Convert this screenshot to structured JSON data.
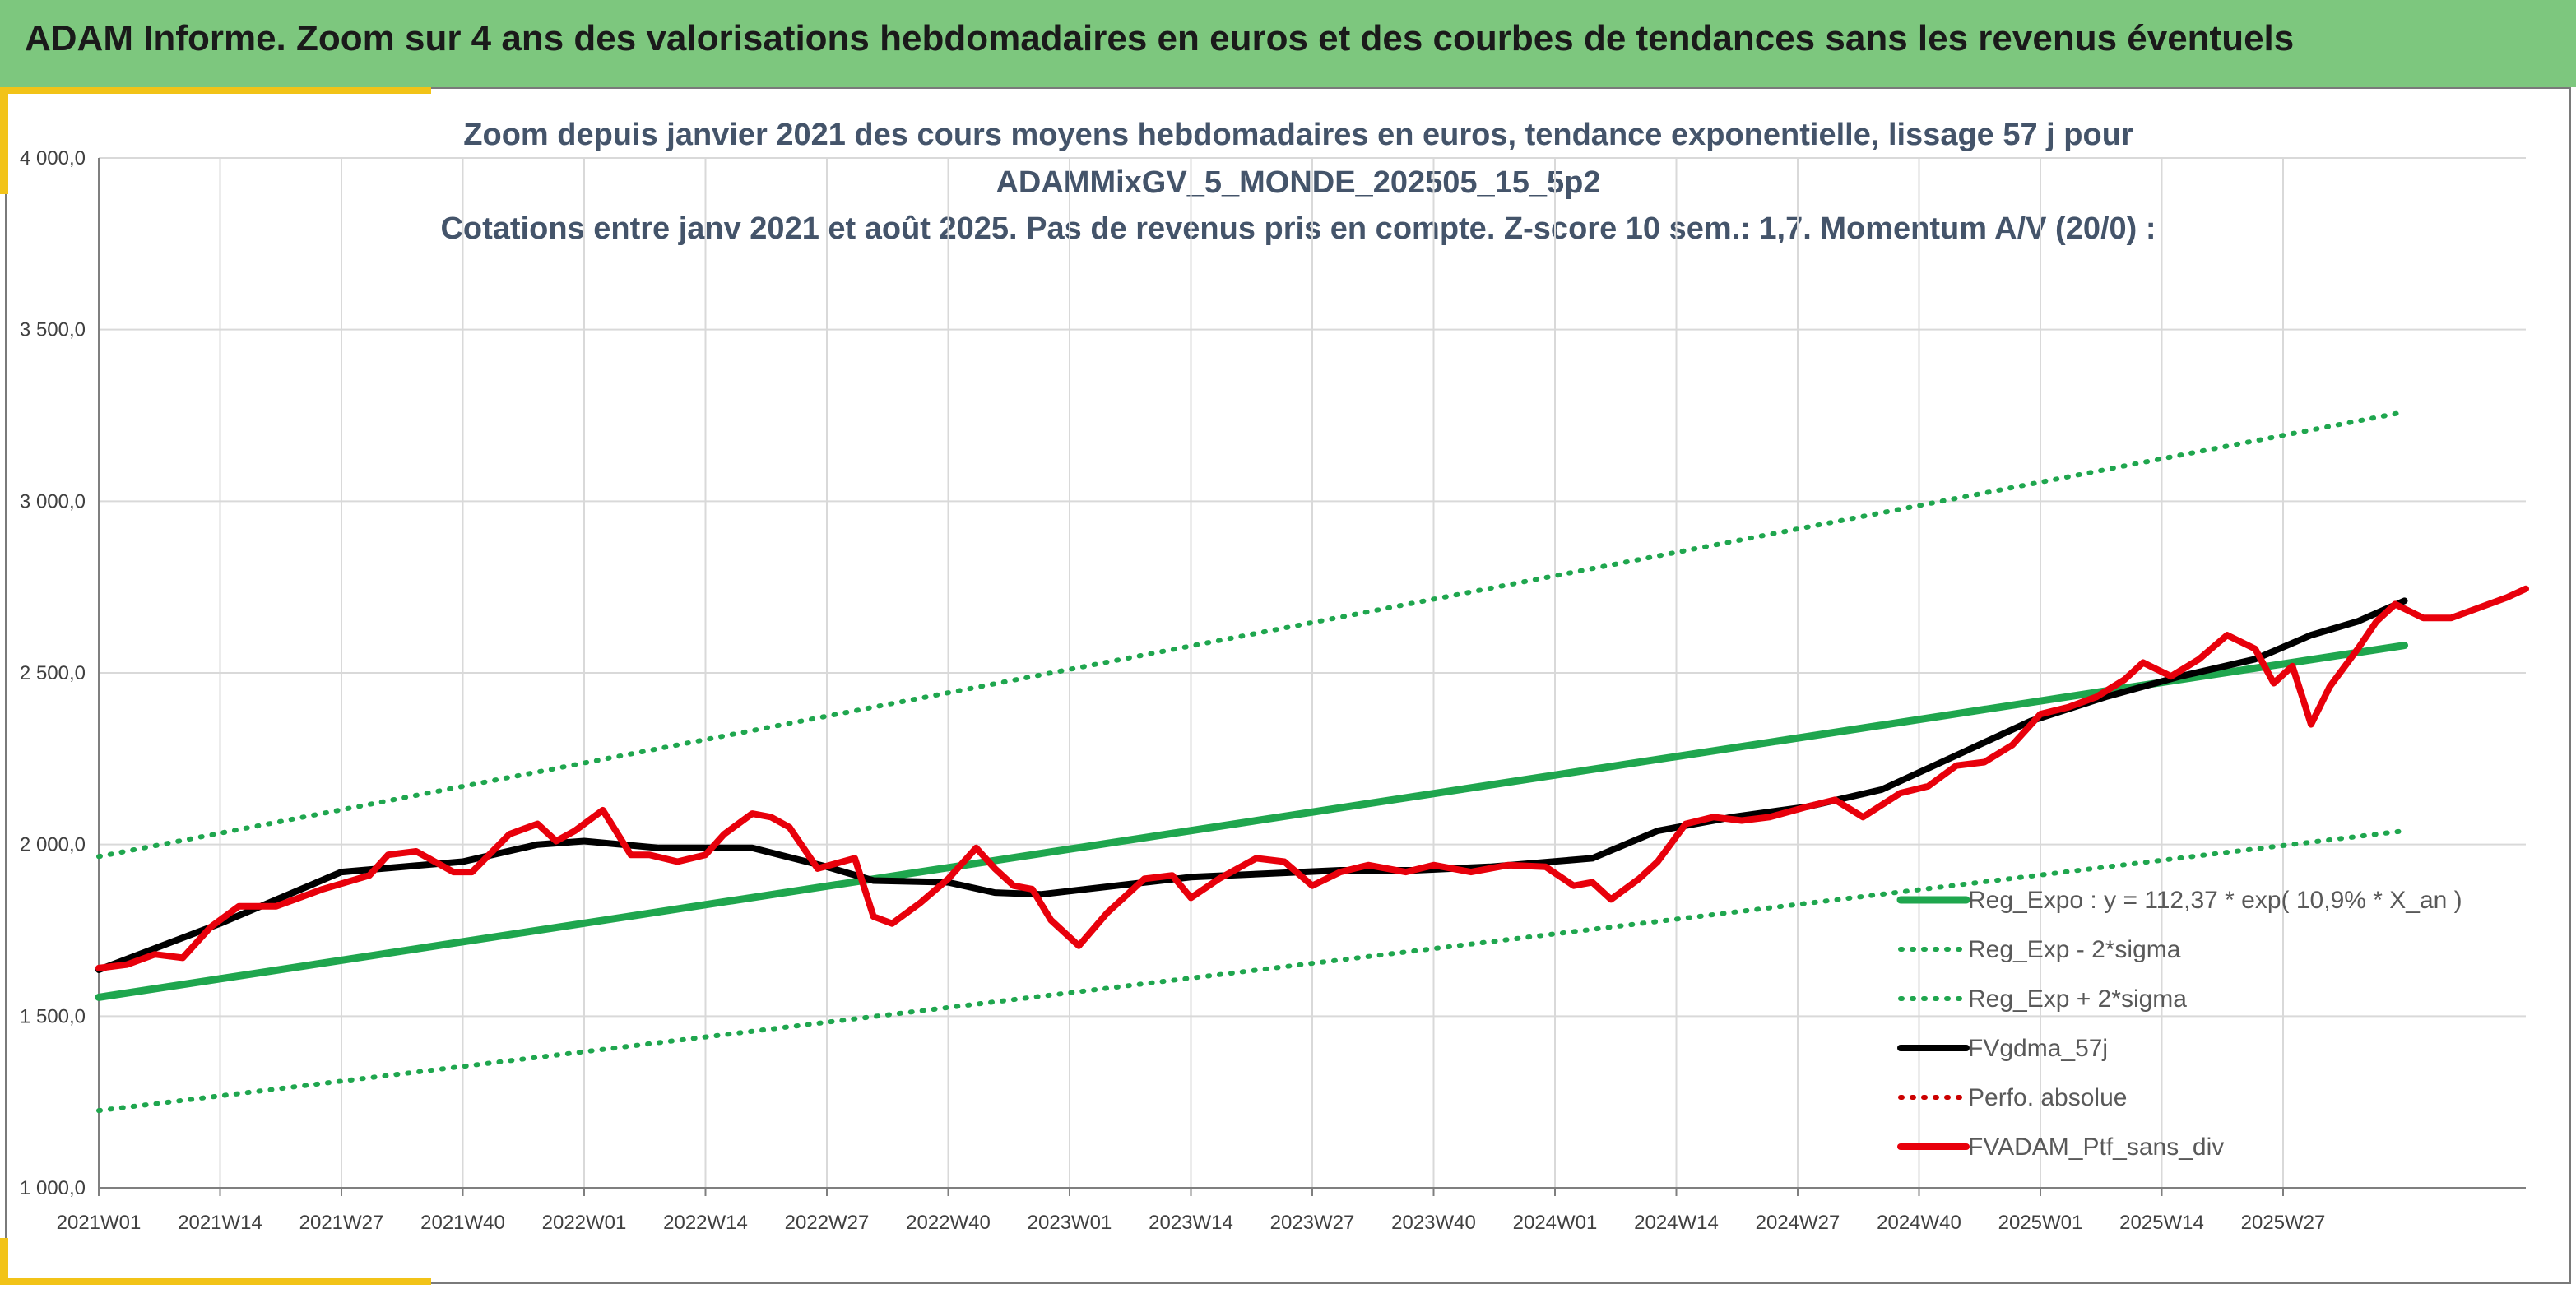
{
  "header": {
    "title": "ADAM Informe. Zoom sur 4 ans des valorisations hebdomadaires en euros et des courbes de tendances sans les revenus éventuels"
  },
  "colors": {
    "header_bg": "#7dc77e",
    "accent": "#f2c318",
    "trend_green": "#1fa64e",
    "dotted_green": "#1fa64e",
    "mma_black": "#000000",
    "portfolio_red": "#e8000b",
    "perf_red": "#cc0000",
    "grid": "#d9d9d9"
  },
  "chart_data": {
    "type": "line",
    "title_lines": [
      "Zoom depuis janvier 2021 des cours moyens hebdomadaires en euros, tendance exponentielle, lissage 57 j pour",
      "ADAMMixGV_5_MONDE_202505_15_5p2",
      "Cotations entre janv 2021 et août 2025. Pas de revenus pris en compte. Z-score 10 sem.: 1,7. Momentum A/V (20/0) :"
    ],
    "xlabel": "",
    "ylabel": "",
    "ylim": [
      1000,
      4000
    ],
    "y_ticks": [
      1000,
      1500,
      2000,
      2500,
      3000,
      3500,
      4000
    ],
    "y_tick_labels": [
      "1 000,0",
      "1 500,0",
      "2 000,0",
      "2 500,0",
      "3 000,0",
      "3 500,0",
      "4 000,0"
    ],
    "x_tick_labels": [
      "2021W01",
      "2021W14",
      "2021W27",
      "2021W40",
      "2022W01",
      "2022W14",
      "2022W27",
      "2022W40",
      "2023W01",
      "2023W14",
      "2023W27",
      "2023W40",
      "2024W01",
      "2024W14",
      "2024W27",
      "2024W40",
      "2025W01",
      "2025W14",
      "2025W27"
    ],
    "grid": true,
    "legend_position": "bottom-right",
    "series": [
      {
        "name": "Reg_Expo : y = 112,37 * exp( 10,9% * X_an )",
        "style": "solid",
        "color": "#1fa64e",
        "points": [
          [
            0,
            1555
          ],
          [
            247,
            2580
          ]
        ]
      },
      {
        "name": "Reg_Exp - 2*sigma",
        "style": "dotted",
        "color": "#1fa64e",
        "points": [
          [
            0,
            1225
          ],
          [
            247,
            2040
          ]
        ]
      },
      {
        "name": "Reg_Exp + 2*sigma",
        "style": "dotted",
        "color": "#1fa64e",
        "points": [
          [
            0,
            1965
          ],
          [
            247,
            3260
          ]
        ]
      },
      {
        "name": "FVgdma_57j",
        "style": "solid",
        "color": "#000000",
        "points": [
          [
            0,
            1635
          ],
          [
            13,
            1770
          ],
          [
            26,
            1920
          ],
          [
            39,
            1950
          ],
          [
            47,
            2000
          ],
          [
            52,
            2010
          ],
          [
            60,
            1990
          ],
          [
            70,
            1990
          ],
          [
            78,
            1935
          ],
          [
            83,
            1895
          ],
          [
            91,
            1890
          ],
          [
            96,
            1860
          ],
          [
            101,
            1855
          ],
          [
            109,
            1880
          ],
          [
            117,
            1905
          ],
          [
            125,
            1915
          ],
          [
            133,
            1925
          ],
          [
            141,
            1925
          ],
          [
            149,
            1935
          ],
          [
            160,
            1960
          ],
          [
            167,
            2040
          ],
          [
            175,
            2080
          ],
          [
            183,
            2110
          ],
          [
            191,
            2160
          ],
          [
            199,
            2260
          ],
          [
            207,
            2360
          ],
          [
            215,
            2430
          ],
          [
            223,
            2490
          ],
          [
            231,
            2540
          ],
          [
            237,
            2610
          ],
          [
            242,
            2650
          ],
          [
            247,
            2710
          ]
        ]
      },
      {
        "name": "Perfo. absolue",
        "style": "dotted",
        "color": "#cc0000",
        "points": []
      },
      {
        "name": "FVADAM_Ptf_sans_div",
        "style": "solid",
        "color": "#e8000b",
        "points": [
          [
            0,
            1640
          ],
          [
            3,
            1650
          ],
          [
            6,
            1680
          ],
          [
            9,
            1670
          ],
          [
            12,
            1760
          ],
          [
            15,
            1820
          ],
          [
            19,
            1820
          ],
          [
            24,
            1870
          ],
          [
            29,
            1910
          ],
          [
            31,
            1970
          ],
          [
            34,
            1980
          ],
          [
            38,
            1920
          ],
          [
            40,
            1920
          ],
          [
            44,
            2030
          ],
          [
            47,
            2060
          ],
          [
            49,
            2010
          ],
          [
            51,
            2040
          ],
          [
            54,
            2100
          ],
          [
            57,
            1970
          ],
          [
            59,
            1970
          ],
          [
            62,
            1950
          ],
          [
            65,
            1970
          ],
          [
            67,
            2030
          ],
          [
            70,
            2090
          ],
          [
            72,
            2080
          ],
          [
            74,
            2050
          ],
          [
            77,
            1930
          ],
          [
            81,
            1960
          ],
          [
            83,
            1790
          ],
          [
            85,
            1770
          ],
          [
            88,
            1830
          ],
          [
            91,
            1900
          ],
          [
            94,
            1990
          ],
          [
            96,
            1930
          ],
          [
            98,
            1880
          ],
          [
            100,
            1870
          ],
          [
            102,
            1780
          ],
          [
            105,
            1705
          ],
          [
            108,
            1800
          ],
          [
            112,
            1900
          ],
          [
            115,
            1910
          ],
          [
            117,
            1845
          ],
          [
            120,
            1900
          ],
          [
            124,
            1960
          ],
          [
            127,
            1950
          ],
          [
            130,
            1880
          ],
          [
            133,
            1920
          ],
          [
            136,
            1940
          ],
          [
            140,
            1920
          ],
          [
            143,
            1940
          ],
          [
            147,
            1920
          ],
          [
            151,
            1940
          ],
          [
            155,
            1935
          ],
          [
            158,
            1880
          ],
          [
            160,
            1890
          ],
          [
            162,
            1840
          ],
          [
            165,
            1900
          ],
          [
            167,
            1950
          ],
          [
            170,
            2060
          ],
          [
            173,
            2080
          ],
          [
            176,
            2070
          ],
          [
            179,
            2080
          ],
          [
            183,
            2110
          ],
          [
            186,
            2130
          ],
          [
            189,
            2080
          ],
          [
            193,
            2150
          ],
          [
            196,
            2170
          ],
          [
            199,
            2230
          ],
          [
            202,
            2240
          ],
          [
            205,
            2290
          ],
          [
            208,
            2380
          ],
          [
            211,
            2400
          ],
          [
            214,
            2430
          ],
          [
            217,
            2480
          ],
          [
            219,
            2530
          ],
          [
            222,
            2490
          ],
          [
            225,
            2540
          ],
          [
            228,
            2610
          ],
          [
            231,
            2570
          ],
          [
            233,
            2470
          ],
          [
            235,
            2520
          ],
          [
            237,
            2350
          ],
          [
            239,
            2460
          ],
          [
            242,
            2570
          ],
          [
            244,
            2650
          ],
          [
            246,
            2700
          ],
          [
            249,
            2660
          ],
          [
            252,
            2660
          ],
          [
            255,
            2690
          ],
          [
            258,
            2720
          ],
          [
            260,
            2745
          ]
        ]
      }
    ]
  }
}
